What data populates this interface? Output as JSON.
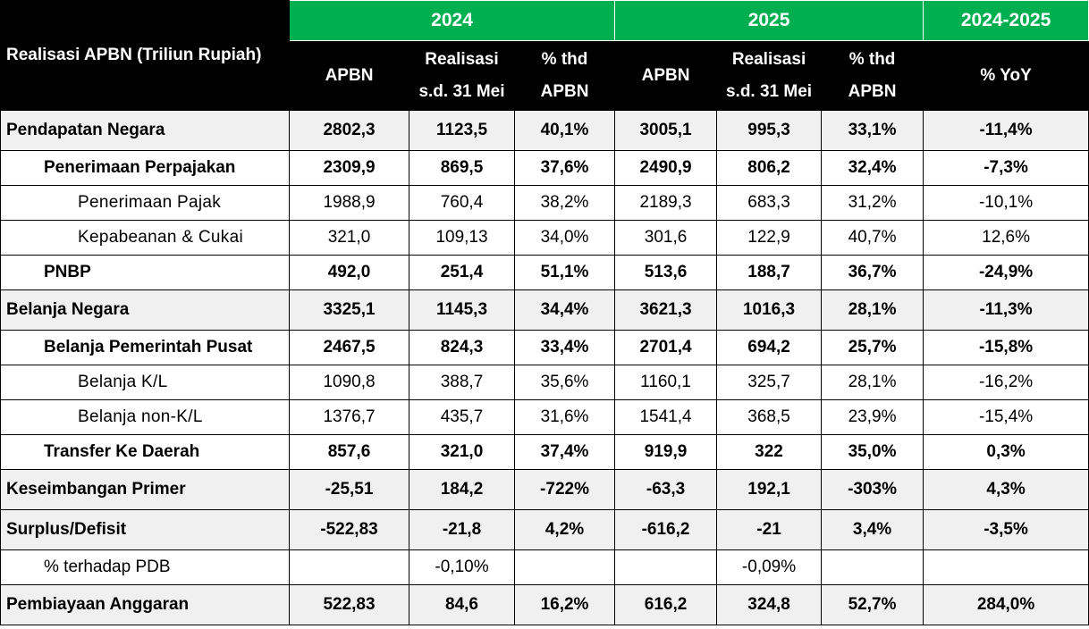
{
  "table": {
    "title": "Realisasi APBN (Triliun Rupiah)",
    "year_headers": [
      "2024",
      "2025",
      "2024-2025"
    ],
    "sub_headers": {
      "apbn": "APBN",
      "realisasi_l1": "Realisasi",
      "realisasi_l2": "s.d. 31 Mei",
      "pct_l1": "% thd",
      "pct_l2": "APBN",
      "yoy": "% YoY"
    },
    "rows": [
      {
        "label": "Pendapatan Negara",
        "values": [
          "2802,3",
          "1123,5",
          "40,1%",
          "3005,1",
          "995,3",
          "33,1%",
          "-11,4%"
        ]
      },
      {
        "label": "Penerimaan Perpajakan",
        "values": [
          "2309,9",
          "869,5",
          "37,6%",
          "2490,9",
          "806,2",
          "32,4%",
          "-7,3%"
        ]
      },
      {
        "label": "Penerimaan Pajak",
        "values": [
          "1988,9",
          "760,4",
          "38,2%",
          "2189,3",
          "683,3",
          "31,2%",
          "-10,1%"
        ]
      },
      {
        "label": "Kepabeanan & Cukai",
        "values": [
          "321,0",
          "109,13",
          "34,0%",
          "301,6",
          "122,9",
          "40,7%",
          "12,6%"
        ]
      },
      {
        "label": "PNBP",
        "values": [
          "492,0",
          "251,4",
          "51,1%",
          "513,6",
          "188,7",
          "36,7%",
          "-24,9%"
        ]
      },
      {
        "label": "Belanja Negara",
        "values": [
          "3325,1",
          "1145,3",
          "34,4%",
          "3621,3",
          "1016,3",
          "28,1%",
          "-11,3%"
        ]
      },
      {
        "label": "Belanja Pemerintah Pusat",
        "values": [
          "2467,5",
          "824,3",
          "33,4%",
          "2701,4",
          "694,2",
          "25,7%",
          "-15,8%"
        ]
      },
      {
        "label": "Belanja K/L",
        "values": [
          "1090,8",
          "388,7",
          "35,6%",
          "1160,1",
          "325,7",
          "28,1%",
          "-16,2%"
        ]
      },
      {
        "label": "Belanja non-K/L",
        "values": [
          "1376,7",
          "435,7",
          "31,6%",
          "1541,4",
          "368,5",
          "23,9%",
          "-15,4%"
        ]
      },
      {
        "label": "Transfer Ke Daerah",
        "values": [
          "857,6",
          "321,0",
          "37,4%",
          "919,9",
          "322",
          "35,0%",
          "0,3%"
        ]
      },
      {
        "label": "Keseimbangan Primer",
        "values": [
          "-25,51",
          "184,2",
          "-722%",
          "-63,3",
          "192,1",
          "-303%",
          "4,3%"
        ]
      },
      {
        "label": "Surplus/Defisit",
        "values": [
          "-522,83",
          "-21,8",
          "4,2%",
          "-616,2",
          "-21",
          "3,4%",
          "-3,5%"
        ]
      },
      {
        "label": "% terhadap PDB",
        "values": [
          "",
          "-0,10%",
          "",
          "",
          "-0,09%",
          "",
          ""
        ]
      },
      {
        "label": "Pembiayaan Anggaran",
        "values": [
          "522,83",
          "84,6",
          "16,2%",
          "616,2",
          "324,8",
          "52,7%",
          "284,0%"
        ]
      }
    ]
  }
}
